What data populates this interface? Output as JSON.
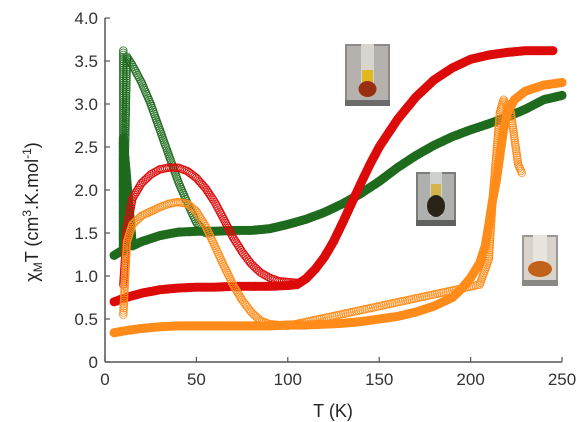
{
  "chart_data": {
    "type": "scatter",
    "title": "",
    "xlabel": "T (K)",
    "ylabel": "χMT (cm3.K.mol-1)",
    "ylabel_parts": {
      "chi": "χ",
      "sub": "M",
      "mid": "T (cm",
      "sup1": "3",
      "mid2": ".K.mol",
      "sup2": "-1",
      "end": ")"
    },
    "xlim": [
      0,
      250
    ],
    "ylim": [
      0,
      4.0
    ],
    "x_ticks": [
      0,
      50,
      100,
      150,
      200,
      250
    ],
    "y_ticks": [
      0,
      0.5,
      1.0,
      1.5,
      2.0,
      2.5,
      3.0,
      3.5,
      4.0
    ],
    "y_tick_labels": [
      "0",
      "0.5",
      "1.0",
      "1.5",
      "2.0",
      "2.5",
      "3.0",
      "3.5",
      "4.0"
    ],
    "grid": false,
    "legend": "none",
    "series": [
      {
        "color": "#1e6b1e",
        "marker": "filled",
        "points": [
          [
            5,
            1.24
          ],
          [
            8,
            1.28
          ],
          [
            10,
            1.3
          ],
          [
            10,
            2.6
          ],
          [
            15,
            1.35
          ],
          [
            20,
            1.4
          ],
          [
            30,
            1.47
          ],
          [
            40,
            1.51
          ],
          [
            50,
            1.52
          ],
          [
            60,
            1.52
          ],
          [
            70,
            1.53
          ],
          [
            80,
            1.53
          ],
          [
            90,
            1.55
          ],
          [
            100,
            1.6
          ],
          [
            110,
            1.66
          ],
          [
            120,
            1.74
          ],
          [
            130,
            1.84
          ],
          [
            140,
            1.96
          ],
          [
            150,
            2.1
          ],
          [
            160,
            2.26
          ],
          [
            170,
            2.4
          ],
          [
            180,
            2.52
          ],
          [
            190,
            2.62
          ],
          [
            200,
            2.7
          ],
          [
            210,
            2.77
          ],
          [
            220,
            2.85
          ],
          [
            230,
            2.94
          ],
          [
            240,
            3.05
          ],
          [
            250,
            3.1
          ]
        ]
      },
      {
        "color": "#1e6b1e",
        "marker": "open",
        "points": [
          [
            10,
            3.62
          ],
          [
            10,
            2.8
          ],
          [
            10,
            1.5
          ],
          [
            12,
            3.55
          ],
          [
            15,
            3.45
          ],
          [
            20,
            3.25
          ],
          [
            25,
            3.0
          ],
          [
            30,
            2.7
          ],
          [
            35,
            2.4
          ],
          [
            40,
            2.1
          ],
          [
            45,
            1.85
          ],
          [
            50,
            1.62
          ],
          [
            55,
            1.5
          ],
          [
            60,
            1.52
          ]
        ]
      },
      {
        "color": "#dd0a0a",
        "marker": "filled",
        "points": [
          [
            5,
            0.7
          ],
          [
            10,
            0.74
          ],
          [
            20,
            0.8
          ],
          [
            30,
            0.84
          ],
          [
            40,
            0.86
          ],
          [
            50,
            0.87
          ],
          [
            60,
            0.87
          ],
          [
            70,
            0.88
          ],
          [
            80,
            0.88
          ],
          [
            90,
            0.88
          ],
          [
            100,
            0.89
          ],
          [
            105,
            0.9
          ],
          [
            110,
            0.97
          ],
          [
            115,
            1.08
          ],
          [
            120,
            1.22
          ],
          [
            125,
            1.4
          ],
          [
            130,
            1.62
          ],
          [
            135,
            1.85
          ],
          [
            140,
            2.08
          ],
          [
            145,
            2.3
          ],
          [
            150,
            2.5
          ],
          [
            160,
            2.82
          ],
          [
            170,
            3.08
          ],
          [
            180,
            3.28
          ],
          [
            190,
            3.42
          ],
          [
            200,
            3.52
          ],
          [
            210,
            3.57
          ],
          [
            220,
            3.6
          ],
          [
            230,
            3.62
          ],
          [
            235,
            3.62
          ],
          [
            245,
            3.62
          ]
        ]
      },
      {
        "color": "#dd0a0a",
        "marker": "open",
        "points": [
          [
            10,
            0.9
          ],
          [
            12,
            1.55
          ],
          [
            15,
            1.9
          ],
          [
            20,
            2.08
          ],
          [
            25,
            2.18
          ],
          [
            30,
            2.24
          ],
          [
            35,
            2.26
          ],
          [
            40,
            2.26
          ],
          [
            45,
            2.22
          ],
          [
            50,
            2.14
          ],
          [
            55,
            2.02
          ],
          [
            60,
            1.86
          ],
          [
            65,
            1.66
          ],
          [
            70,
            1.45
          ],
          [
            75,
            1.28
          ],
          [
            80,
            1.14
          ],
          [
            85,
            1.04
          ],
          [
            90,
            0.98
          ],
          [
            95,
            0.94
          ],
          [
            100,
            0.93
          ],
          [
            105,
            0.92
          ]
        ]
      },
      {
        "color": "#ff8c1a",
        "marker": "filled",
        "points": [
          [
            5,
            0.34
          ],
          [
            10,
            0.36
          ],
          [
            20,
            0.39
          ],
          [
            30,
            0.41
          ],
          [
            40,
            0.42
          ],
          [
            50,
            0.42
          ],
          [
            60,
            0.42
          ],
          [
            70,
            0.42
          ],
          [
            80,
            0.42
          ],
          [
            90,
            0.42
          ],
          [
            100,
            0.43
          ],
          [
            110,
            0.43
          ],
          [
            120,
            0.44
          ],
          [
            130,
            0.45
          ],
          [
            140,
            0.47
          ],
          [
            150,
            0.5
          ],
          [
            160,
            0.53
          ],
          [
            170,
            0.58
          ],
          [
            180,
            0.65
          ],
          [
            190,
            0.75
          ],
          [
            195,
            0.85
          ],
          [
            200,
            0.98
          ],
          [
            205,
            1.15
          ],
          [
            208,
            1.35
          ],
          [
            210,
            1.6
          ],
          [
            212,
            1.88
          ],
          [
            214,
            2.1
          ],
          [
            216,
            2.4
          ],
          [
            218,
            2.7
          ],
          [
            220,
            2.9
          ],
          [
            224,
            3.05
          ],
          [
            230,
            3.15
          ],
          [
            240,
            3.22
          ],
          [
            250,
            3.25
          ]
        ]
      },
      {
        "color": "#ff8c1a",
        "marker": "open",
        "points": [
          [
            10,
            0.55
          ],
          [
            12,
            1.4
          ],
          [
            15,
            1.6
          ],
          [
            20,
            1.7
          ],
          [
            25,
            1.75
          ],
          [
            30,
            1.8
          ],
          [
            35,
            1.84
          ],
          [
            40,
            1.86
          ],
          [
            45,
            1.84
          ],
          [
            50,
            1.75
          ],
          [
            55,
            1.58
          ],
          [
            60,
            1.35
          ],
          [
            65,
            1.12
          ],
          [
            70,
            0.9
          ],
          [
            75,
            0.72
          ],
          [
            80,
            0.58
          ],
          [
            85,
            0.48
          ],
          [
            90,
            0.44
          ],
          [
            95,
            0.43
          ],
          [
            100,
            0.42
          ],
          [
            205,
            0.9
          ],
          [
            210,
            1.2
          ],
          [
            212,
            1.88
          ],
          [
            216,
            2.9
          ],
          [
            218,
            3.05
          ],
          [
            222,
            2.9
          ],
          [
            224,
            2.6
          ],
          [
            226,
            2.3
          ],
          [
            228,
            2.2
          ]
        ]
      }
    ]
  }
}
